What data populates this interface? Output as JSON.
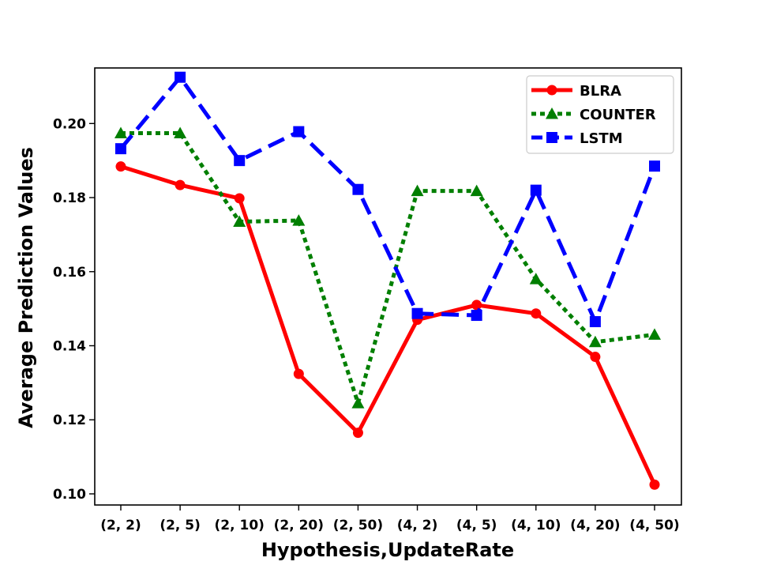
{
  "chart_data": {
    "type": "line",
    "title": "",
    "xlabel": "Hypothesis,UpdateRate",
    "ylabel": "Average Prediction Values",
    "categories": [
      "(2, 2)",
      "(2, 5)",
      "(2, 10)",
      "(2, 20)",
      "(2, 50)",
      "(4, 2)",
      "(4, 5)",
      "(4, 10)",
      "(4, 20)",
      "(4, 50)"
    ],
    "ylim": [
      0.097,
      0.215
    ],
    "yticks": [
      0.1,
      0.12,
      0.14,
      0.16,
      0.18,
      0.2
    ],
    "ytick_labels": [
      "0.10",
      "0.12",
      "0.14",
      "0.16",
      "0.18",
      "0.20"
    ],
    "grid": false,
    "legend_position": "top-right",
    "series": [
      {
        "name": "BLRA",
        "color": "#ff0000",
        "linestyle": "solid",
        "marker": "circle",
        "values": [
          0.1884,
          0.1834,
          0.1798,
          0.1324,
          0.1165,
          0.147,
          0.151,
          0.1487,
          0.137,
          0.1025
        ]
      },
      {
        "name": "COUNTER",
        "color": "#007f00",
        "linestyle": "dotted",
        "marker": "triangle",
        "values": [
          0.1974,
          0.1974,
          0.1735,
          0.1738,
          0.1245,
          0.1818,
          0.1818,
          0.158,
          0.141,
          0.143
        ]
      },
      {
        "name": "LSTM",
        "color": "#0000ff",
        "linestyle": "dashed",
        "marker": "square",
        "values": [
          0.1932,
          0.2125,
          0.19,
          0.1978,
          0.1822,
          0.1487,
          0.1482,
          0.182,
          0.1465,
          0.1885
        ]
      }
    ]
  }
}
